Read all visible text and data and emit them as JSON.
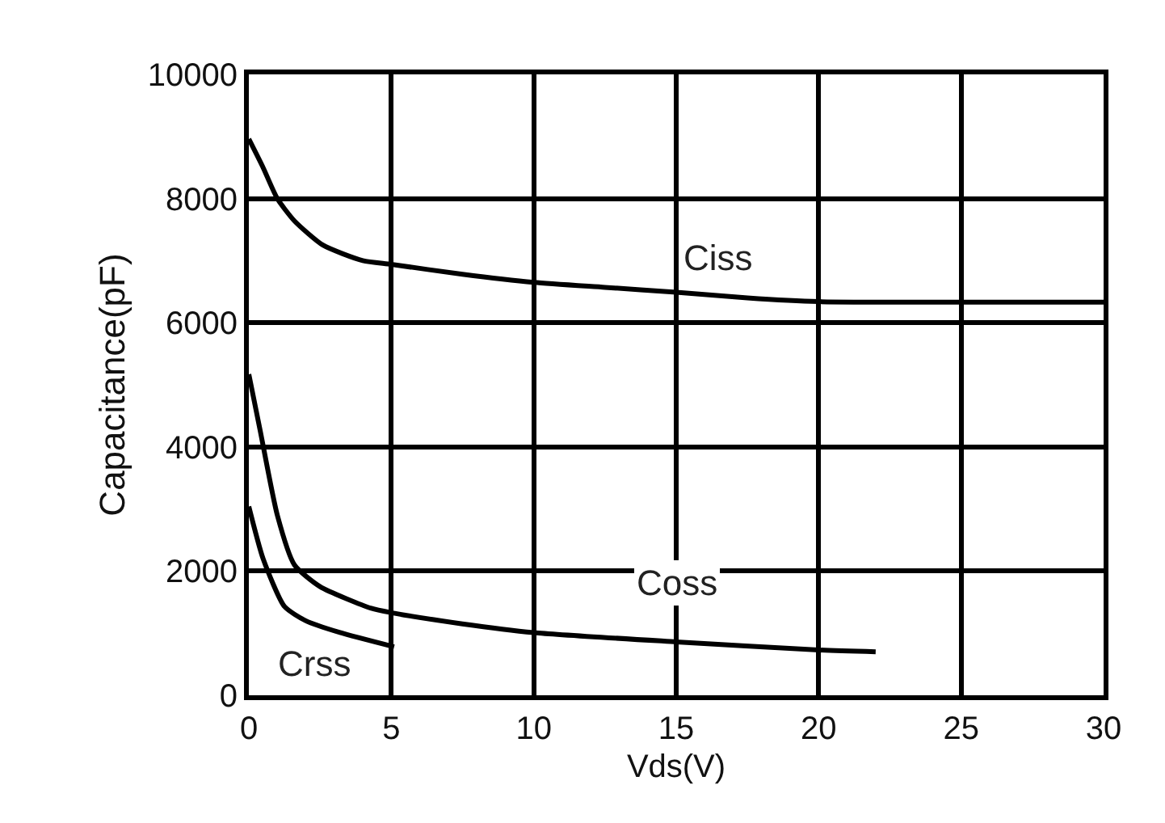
{
  "chart_data": {
    "type": "line",
    "xlabel": "Vds(V)",
    "ylabel": "Capacitance(pF)",
    "xlim": [
      0,
      30
    ],
    "ylim": [
      0,
      10000
    ],
    "xticks": [
      0,
      5,
      10,
      15,
      20,
      25,
      30
    ],
    "yticks": [
      0,
      2000,
      4000,
      6000,
      8000,
      10000
    ],
    "grid": true,
    "legend": false,
    "marker": "none",
    "line_style": "solid",
    "series": [
      {
        "name": "Ciss",
        "color": "#000000",
        "x": [
          0,
          0.5,
          1,
          1.6,
          2.6,
          4,
          5,
          7.5,
          10,
          12.5,
          15,
          17.5,
          20,
          25,
          30
        ],
        "values": [
          8960,
          8500,
          8000,
          7640,
          7250,
          7000,
          6940,
          6780,
          6650,
          6570,
          6490,
          6400,
          6340,
          6330,
          6330
        ]
      },
      {
        "name": "Coss",
        "color": "#000000",
        "x": [
          0,
          0.4,
          1,
          1.6,
          2.5,
          4.3,
          5,
          7.5,
          10,
          15,
          20,
          22
        ],
        "values": [
          5170,
          4260,
          2900,
          2100,
          1750,
          1400,
          1330,
          1150,
          1010,
          860,
          730,
          700
        ]
      },
      {
        "name": "Crss",
        "color": "#000000",
        "x": [
          0,
          0.5,
          1.25,
          2,
          3.2,
          5.1
        ],
        "values": [
          3040,
          2200,
          1430,
          1200,
          1010,
          780
        ]
      }
    ]
  }
}
